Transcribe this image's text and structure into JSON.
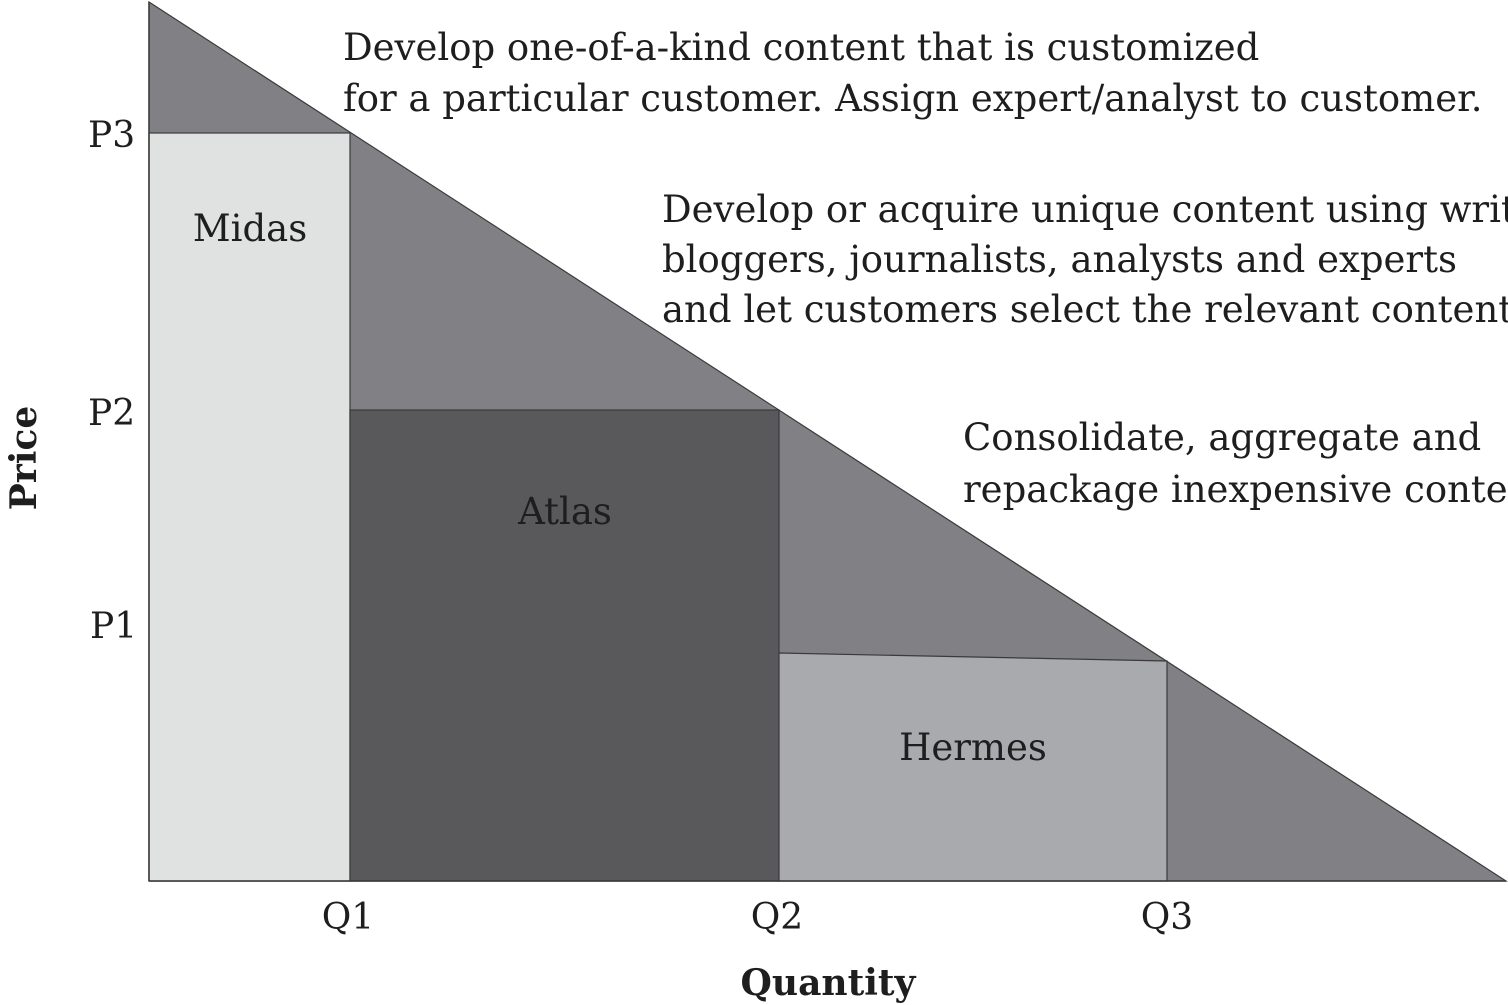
{
  "diagram": {
    "y_axis": {
      "title": "Price",
      "ticks": [
        "P1",
        "P2",
        "P3"
      ]
    },
    "x_axis": {
      "title": "Quantity",
      "ticks": [
        "Q1",
        "Q2",
        "Q3"
      ]
    },
    "regions": {
      "midas": "Midas",
      "atlas": "Atlas",
      "hermes": "Hermes"
    },
    "notes": {
      "top": [
        "Develop one-of-a-kind content that is customized",
        "for a particular customer. Assign expert/analyst to customer."
      ],
      "middle": [
        "Develop or acquire unique content using writers,",
        "bloggers, journalists, analysts and experts",
        "and let customers select the relevant content."
      ],
      "bottom": [
        "Consolidate, aggregate and",
        "repackage inexpensive content."
      ]
    },
    "colors": {
      "triangle": "#818185",
      "midas": "#e0e1e1",
      "atlas": "#59595c",
      "hermes": "#a9aaad",
      "stroke": "#3a3a3a"
    }
  }
}
